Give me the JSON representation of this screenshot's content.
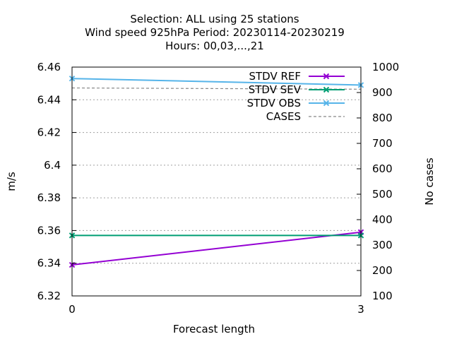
{
  "chart_data": {
    "type": "line",
    "title_lines": [
      "Selection: ALL using    25 stations",
      "Wind speed 925hPa   Period: 20230114-20230219",
      "Hours:  00,03,...,21"
    ],
    "xlabel": "Forecast length",
    "ylabel": "m/s",
    "y2label": "No cases",
    "x": [
      0,
      3
    ],
    "xlim": [
      0,
      3
    ],
    "xticks": [
      "0",
      "3"
    ],
    "ylim": [
      6.32,
      6.46
    ],
    "yticks": [
      "6.32",
      "6.34",
      "6.36",
      "6.38",
      "6.4",
      "6.42",
      "6.44",
      "6.46"
    ],
    "y2lim": [
      100,
      1000
    ],
    "y2ticks": [
      "100",
      "200",
      "300",
      "400",
      "500",
      "600",
      "700",
      "800",
      "900",
      "1000"
    ],
    "grid": true,
    "legend_position": "top-right",
    "series": [
      {
        "name": "STDV REF",
        "axis": "y1",
        "color": "#9400d3",
        "marker": "x",
        "values": [
          6.339,
          6.359
        ]
      },
      {
        "name": "STDV SEV",
        "axis": "y1",
        "color": "#009e73",
        "marker": "x",
        "values": [
          6.357,
          6.357
        ]
      },
      {
        "name": "STDV OBS",
        "axis": "y1",
        "color": "#56b4e9",
        "marker": "x",
        "values": [
          6.453,
          6.449
        ]
      },
      {
        "name": "CASES",
        "axis": "y2",
        "color": "#888888",
        "marker": "none",
        "dashed": true,
        "values": [
          918,
          913
        ]
      }
    ]
  }
}
